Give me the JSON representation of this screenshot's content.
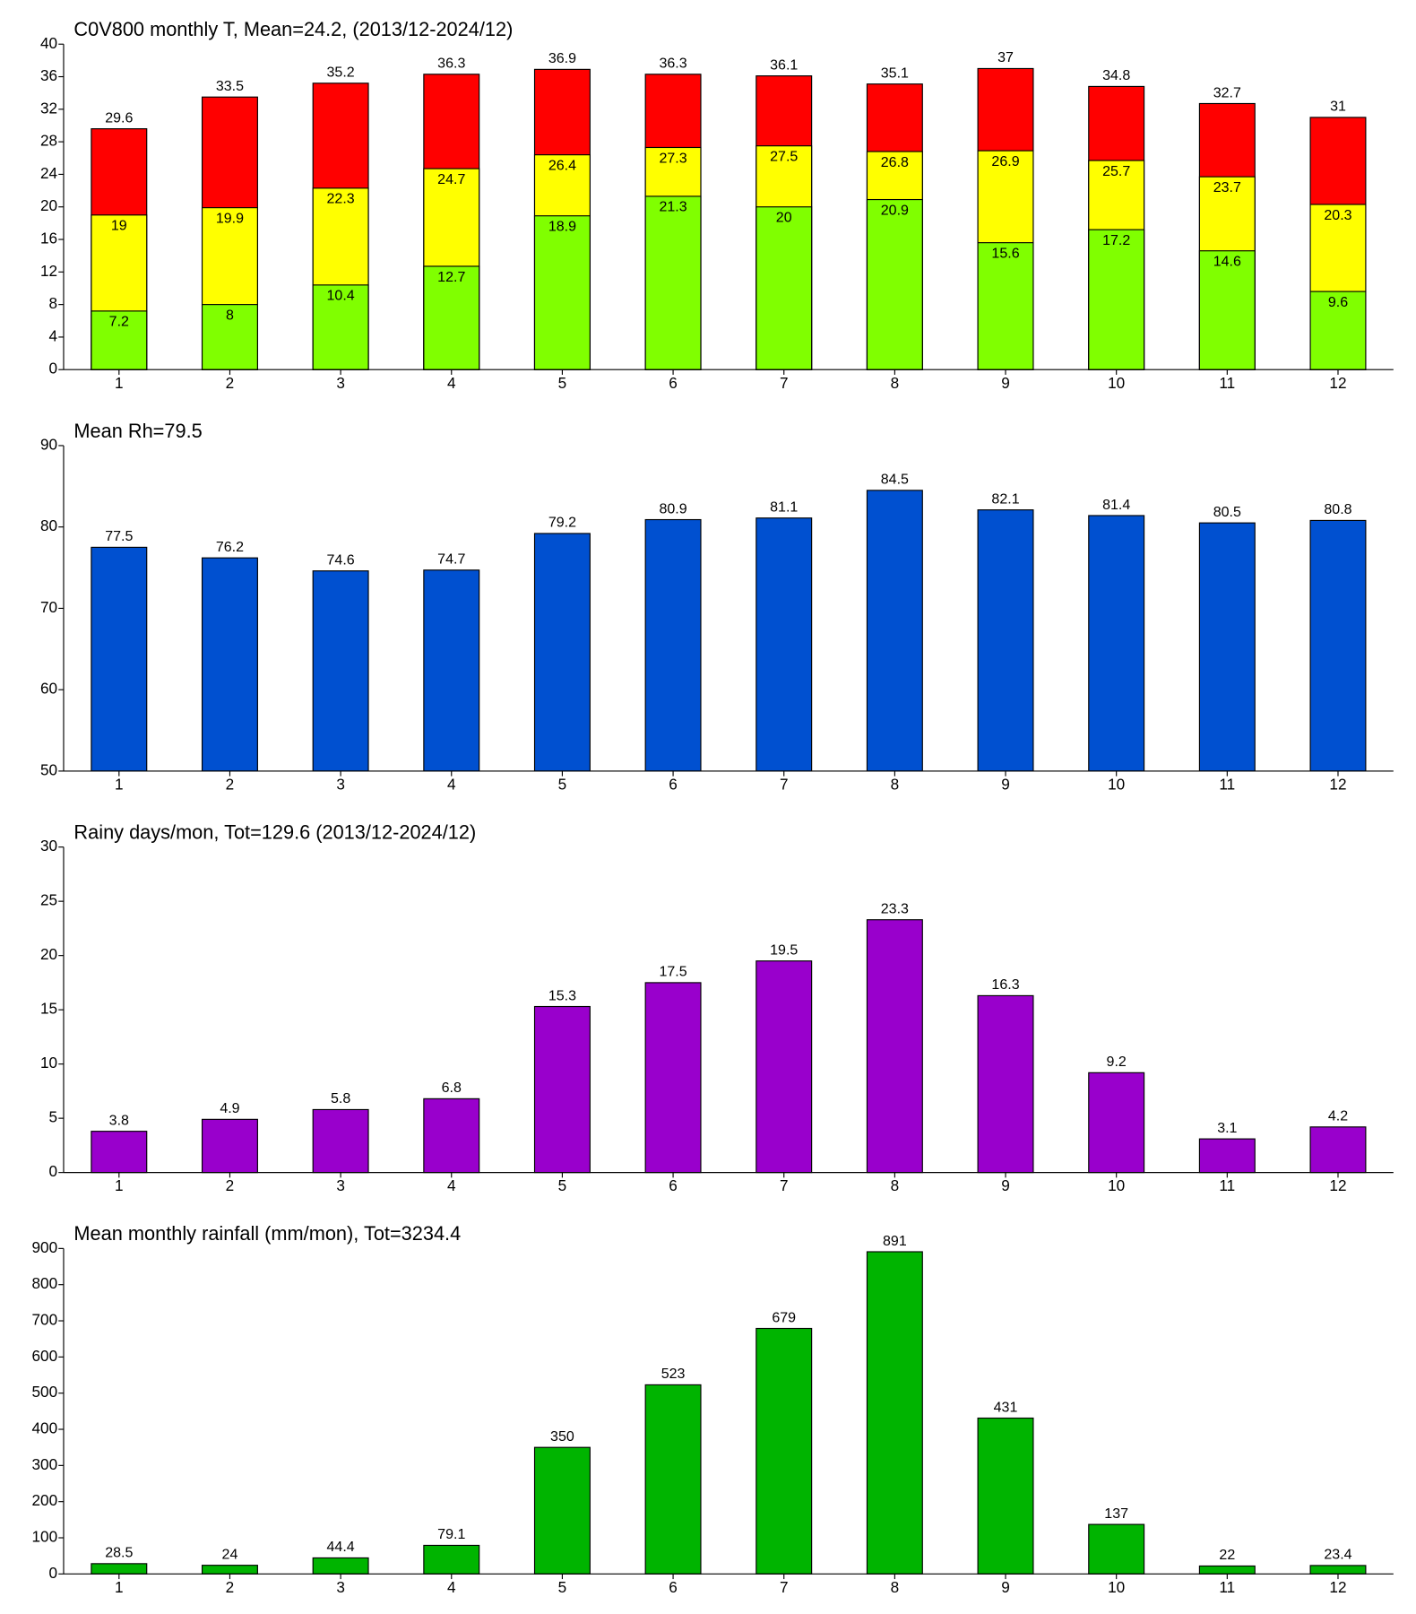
{
  "chart_data": [
    {
      "type": "bar",
      "barmode": "overlay",
      "title": "C0V800 monthly T, Mean=24.2, (2013/12-2024/12)",
      "categories": [
        "1",
        "2",
        "3",
        "4",
        "5",
        "6",
        "7",
        "8",
        "9",
        "10",
        "11",
        "12"
      ],
      "series": [
        {
          "color": "#ff0000",
          "values": [
            29.6,
            33.5,
            35.2,
            36.3,
            36.9,
            36.3,
            36.1,
            35.1,
            37,
            34.8,
            32.7,
            31
          ]
        },
        {
          "color": "#ffff00",
          "values": [
            19,
            19.9,
            22.3,
            24.7,
            26.4,
            27.3,
            27.5,
            26.8,
            26.9,
            25.7,
            23.7,
            20.3
          ]
        },
        {
          "color": "#80ff00",
          "values": [
            7.2,
            8,
            10.4,
            12.7,
            18.9,
            21.3,
            20,
            20.9,
            15.6,
            17.2,
            14.6,
            9.6
          ]
        }
      ],
      "ylim": [
        0,
        40
      ],
      "yticks": [
        0,
        4,
        8,
        12,
        16,
        20,
        24,
        28,
        32,
        36,
        40
      ]
    },
    {
      "type": "bar",
      "title": "Mean Rh=79.5",
      "categories": [
        "1",
        "2",
        "3",
        "4",
        "5",
        "6",
        "7",
        "8",
        "9",
        "10",
        "11",
        "12"
      ],
      "values": [
        77.5,
        76.2,
        74.6,
        74.7,
        79.2,
        80.9,
        81.1,
        84.5,
        82.1,
        81.4,
        80.5,
        80.8
      ],
      "color": "#0050d0",
      "ylim": [
        50,
        90
      ],
      "yticks": [
        50,
        60,
        70,
        80,
        90
      ]
    },
    {
      "type": "bar",
      "title": "Rainy days/mon, Tot=129.6 (2013/12-2024/12)",
      "categories": [
        "1",
        "2",
        "3",
        "4",
        "5",
        "6",
        "7",
        "8",
        "9",
        "10",
        "11",
        "12"
      ],
      "values": [
        3.8,
        4.9,
        5.8,
        6.8,
        15.3,
        17.5,
        19.5,
        23.3,
        16.3,
        9.2,
        3.1,
        4.2
      ],
      "color": "#9900cc",
      "ylim": [
        0,
        30
      ],
      "yticks": [
        0,
        5,
        10,
        15,
        20,
        25,
        30
      ]
    },
    {
      "type": "bar",
      "title": "Mean monthly rainfall (mm/mon), Tot=3234.4",
      "categories": [
        "1",
        "2",
        "3",
        "4",
        "5",
        "6",
        "7",
        "8",
        "9",
        "10",
        "11",
        "12"
      ],
      "values": [
        28.5,
        24,
        44.4,
        79.1,
        350,
        523,
        679,
        891,
        431,
        137,
        22,
        23.4
      ],
      "color": "#00b400",
      "ylim": [
        0,
        900
      ],
      "yticks": [
        0,
        100,
        200,
        300,
        400,
        500,
        600,
        700,
        800,
        900
      ]
    }
  ]
}
